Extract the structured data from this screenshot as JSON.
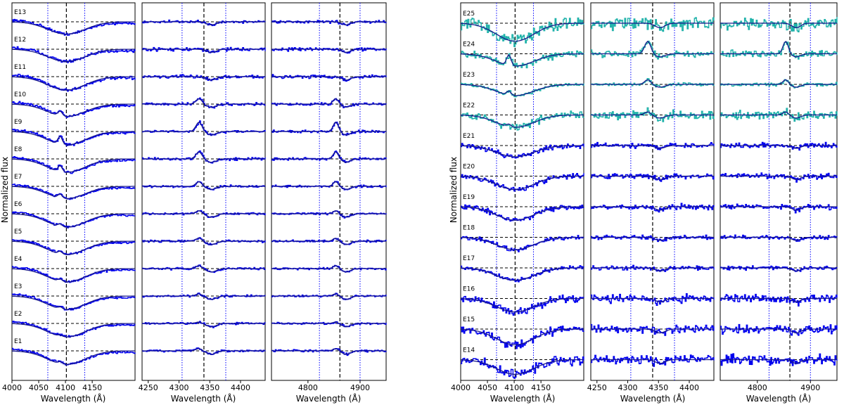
{
  "chart_data": {
    "type": "line",
    "ylabel": "Normalized flux",
    "xlabel": "Wavelength (Å)",
    "colors": {
      "data": "#0000ee",
      "model": "#1a1a8c",
      "data_alt": "#20b2aa",
      "dashed": "#000000",
      "dotted": "#0000ff"
    },
    "panels_x": [
      {
        "xlim": [
          4000,
          4230
        ],
        "ticks": [
          4000,
          4050,
          4100,
          4150
        ],
        "center": 4101.7,
        "edges": [
          4067,
          4136
        ],
        "line_type": "absorption"
      },
      {
        "xlim": [
          4240,
          4440
        ],
        "ticks": [
          4250,
          4300,
          4350,
          4400
        ],
        "center": 4340.5,
        "edges": [
          4305,
          4376
        ],
        "line_type": "weak"
      },
      {
        "xlim": [
          4730,
          4950
        ],
        "ticks": [
          4800,
          4900
        ],
        "center": 4861.3,
        "edges": [
          4822,
          4900
        ],
        "line_type": "weak"
      }
    ],
    "groups": [
      {
        "name": "left",
        "spectra": [
          "E13",
          "E12",
          "E11",
          "E10",
          "E9",
          "E8",
          "E7",
          "E6",
          "E5",
          "E4",
          "E3",
          "E2",
          "E1"
        ],
        "depth": [
          0.55,
          0.55,
          0.6,
          0.55,
          0.6,
          0.6,
          0.55,
          0.6,
          0.6,
          0.6,
          0.6,
          0.6,
          0.6
        ],
        "noise": [
          0.1,
          0.12,
          0.12,
          0.1,
          0.1,
          0.1,
          0.08,
          0.08,
          0.08,
          0.08,
          0.08,
          0.08,
          0.08
        ],
        "emission": [
          0,
          0,
          0,
          0.35,
          0.6,
          0.45,
          0.3,
          0.2,
          0.2,
          0.2,
          0.15,
          0.1,
          0.15
        ]
      },
      {
        "name": "right",
        "spectra": [
          "E25",
          "E24",
          "E23",
          "E22",
          "E21",
          "E20",
          "E19",
          "E18",
          "E17",
          "E16",
          "E15",
          "E14"
        ],
        "alt_color": [
          true,
          true,
          true,
          true,
          false,
          false,
          false,
          false,
          false,
          false,
          false,
          false
        ],
        "depth": [
          0.8,
          0.55,
          0.5,
          0.55,
          0.5,
          0.6,
          0.6,
          0.55,
          0.55,
          0.6,
          0.7,
          0.65
        ],
        "noise": [
          0.45,
          0.25,
          0.12,
          0.3,
          0.18,
          0.2,
          0.2,
          0.15,
          0.15,
          0.3,
          0.3,
          0.35
        ],
        "emission": [
          0,
          0.8,
          0.3,
          0.2,
          0,
          0,
          0,
          0,
          0,
          0,
          0,
          0
        ]
      }
    ]
  }
}
